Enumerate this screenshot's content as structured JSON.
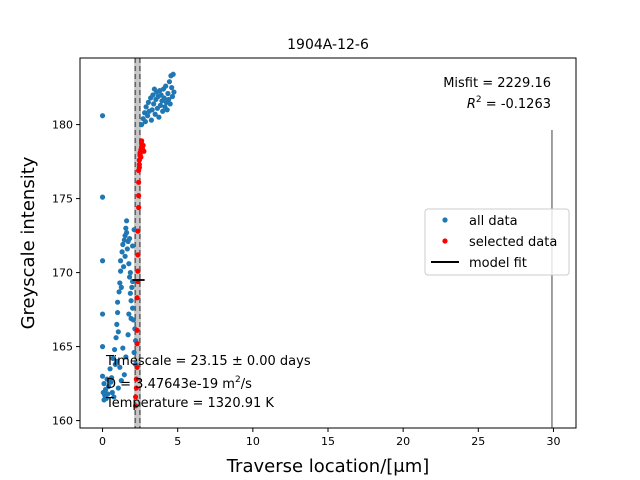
{
  "chart_data": {
    "type": "scatter",
    "title": "1904A-12-6",
    "xlabel": "Traverse location/[μm]",
    "ylabel": "Greyscale intensity",
    "xlim": [
      -1.5,
      31.5
    ],
    "ylim": [
      159.5,
      184.5
    ],
    "xticks": [
      0,
      5,
      10,
      15,
      20,
      25,
      30
    ],
    "yticks": [
      160,
      165,
      170,
      175,
      180
    ],
    "grid": false,
    "legend_position": "right",
    "colors": {
      "all": "#1f77b4",
      "selected": "#ff0000",
      "fit": "#000000",
      "band": "#999999",
      "line": "#808080"
    },
    "series": [
      {
        "name": "all data",
        "marker": "dot",
        "points": [
          [
            0.0,
            180.6
          ],
          [
            0.0,
            175.1
          ],
          [
            0.0,
            170.8
          ],
          [
            0.0,
            167.2
          ],
          [
            0.0,
            165.0
          ],
          [
            0.0,
            163.0
          ],
          [
            0.05,
            161.9
          ],
          [
            0.1,
            161.4
          ],
          [
            0.1,
            162.5
          ],
          [
            0.15,
            161.7
          ],
          [
            0.2,
            162.1
          ],
          [
            0.25,
            161.5
          ],
          [
            0.3,
            162.8
          ],
          [
            0.35,
            161.8
          ],
          [
            0.4,
            162.3
          ],
          [
            0.5,
            163.5
          ],
          [
            0.6,
            162.9
          ],
          [
            0.7,
            164.2
          ],
          [
            0.8,
            164.8
          ],
          [
            0.85,
            163.8
          ],
          [
            0.9,
            165.6
          ],
          [
            0.95,
            166.5
          ],
          [
            1.0,
            167.3
          ],
          [
            1.0,
            168.0
          ],
          [
            1.05,
            166.0
          ],
          [
            1.1,
            168.7
          ],
          [
            1.15,
            169.3
          ],
          [
            1.2,
            170.1
          ],
          [
            1.2,
            170.8
          ],
          [
            1.25,
            169.0
          ],
          [
            1.3,
            171.4
          ],
          [
            1.35,
            171.9
          ],
          [
            1.4,
            170.4
          ],
          [
            1.45,
            172.2
          ],
          [
            1.5,
            171.1
          ],
          [
            1.5,
            172.5
          ],
          [
            1.55,
            173.0
          ],
          [
            1.6,
            172.7
          ],
          [
            1.6,
            173.5
          ],
          [
            1.65,
            171.6
          ],
          [
            1.7,
            172.1
          ],
          [
            1.75,
            170.6
          ],
          [
            1.8,
            169.7
          ],
          [
            1.8,
            172.3
          ],
          [
            1.85,
            168.6
          ],
          [
            1.9,
            168.1
          ],
          [
            1.95,
            169.0
          ],
          [
            2.0,
            167.6
          ],
          [
            2.0,
            171.8
          ],
          [
            2.05,
            166.8
          ],
          [
            2.1,
            172.9
          ],
          [
            2.1,
            164.6
          ],
          [
            2.15,
            166.2
          ],
          [
            2.2,
            163.8
          ],
          [
            2.2,
            165.4
          ],
          [
            1.9,
            166.9
          ],
          [
            1.75,
            167.2
          ],
          [
            1.55,
            164.3
          ],
          [
            1.45,
            163.1
          ],
          [
            1.35,
            164.9
          ],
          [
            1.25,
            162.7
          ],
          [
            1.15,
            163.6
          ],
          [
            1.05,
            162.2
          ],
          [
            0.95,
            164.0
          ],
          [
            0.75,
            161.6
          ],
          [
            0.65,
            161.9
          ],
          [
            0.55,
            162.6
          ],
          [
            1.7,
            165.8
          ],
          [
            1.85,
            170.0
          ],
          [
            2.0,
            169.4
          ],
          [
            2.6,
            180.0
          ],
          [
            2.7,
            180.4
          ],
          [
            2.8,
            180.8
          ],
          [
            2.85,
            180.2
          ],
          [
            2.9,
            181.2
          ],
          [
            3.0,
            180.6
          ],
          [
            3.05,
            181.5
          ],
          [
            3.1,
            180.9
          ],
          [
            3.2,
            181.8
          ],
          [
            3.25,
            180.3
          ],
          [
            3.3,
            181.0
          ],
          [
            3.35,
            182.0
          ],
          [
            3.4,
            181.4
          ],
          [
            3.5,
            180.7
          ],
          [
            3.55,
            181.7
          ],
          [
            3.6,
            182.2
          ],
          [
            3.65,
            181.1
          ],
          [
            3.7,
            181.9
          ],
          [
            3.75,
            180.5
          ],
          [
            3.8,
            182.3
          ],
          [
            3.85,
            181.3
          ],
          [
            3.9,
            182.0
          ],
          [
            3.95,
            181.6
          ],
          [
            4.0,
            180.9
          ],
          [
            4.05,
            182.4
          ],
          [
            4.1,
            181.8
          ],
          [
            4.15,
            181.2
          ],
          [
            4.2,
            182.6
          ],
          [
            4.25,
            181.5
          ],
          [
            4.3,
            181.0
          ],
          [
            4.35,
            182.1
          ],
          [
            4.4,
            181.7
          ],
          [
            4.45,
            182.9
          ],
          [
            4.5,
            181.4
          ],
          [
            4.55,
            183.3
          ],
          [
            4.6,
            182.5
          ],
          [
            4.65,
            181.9
          ],
          [
            4.7,
            183.4
          ],
          [
            4.75,
            182.2
          ],
          [
            3.45,
            182.4
          ]
        ]
      },
      {
        "name": "selected data",
        "marker": "dot",
        "points": [
          [
            2.2,
            161.0
          ],
          [
            2.2,
            161.6
          ],
          [
            2.25,
            162.2
          ],
          [
            2.25,
            162.8
          ],
          [
            2.3,
            163.6
          ],
          [
            2.3,
            165.2
          ],
          [
            2.3,
            166.1
          ],
          [
            2.3,
            168.3
          ],
          [
            2.35,
            169.4
          ],
          [
            2.35,
            170.1
          ],
          [
            2.35,
            171.2
          ],
          [
            2.35,
            172.8
          ],
          [
            2.4,
            174.4
          ],
          [
            2.4,
            175.2
          ],
          [
            2.4,
            176.1
          ],
          [
            2.4,
            176.9
          ],
          [
            2.45,
            177.3
          ],
          [
            2.45,
            177.6
          ],
          [
            2.5,
            177.9
          ],
          [
            2.5,
            178.1
          ],
          [
            2.55,
            178.3
          ],
          [
            2.55,
            177.8
          ],
          [
            2.6,
            178.5
          ],
          [
            2.6,
            178.7
          ],
          [
            2.65,
            178.4
          ],
          [
            2.7,
            178.6
          ],
          [
            2.75,
            178.2
          ],
          [
            2.45,
            177.1
          ],
          [
            2.5,
            178.0
          ],
          [
            2.6,
            178.9
          ]
        ]
      },
      {
        "name": "model fit",
        "type": "line",
        "points": [
          [
            2.0,
            169.5
          ],
          [
            2.8,
            169.5
          ]
        ]
      }
    ],
    "band": {
      "x_min": 2.1,
      "x_max": 2.55,
      "center_lines": [
        2.18,
        2.48
      ]
    },
    "vertical_line_x": 29.9,
    "annotations": {
      "misfit": "Misfit = 2229.16",
      "r2_label": "R",
      "r2_exp": "2",
      "r2_value": " = -0.1263",
      "timescale": "Timescale = 23.15 ± 0.00 days",
      "d_prefix": "D = 3.47643e-19 m",
      "d_exp": "2",
      "d_suffix": "/s",
      "temperature": "Temperature = 1320.91 K"
    },
    "legend": [
      "all data",
      "selected data",
      "model fit"
    ]
  }
}
